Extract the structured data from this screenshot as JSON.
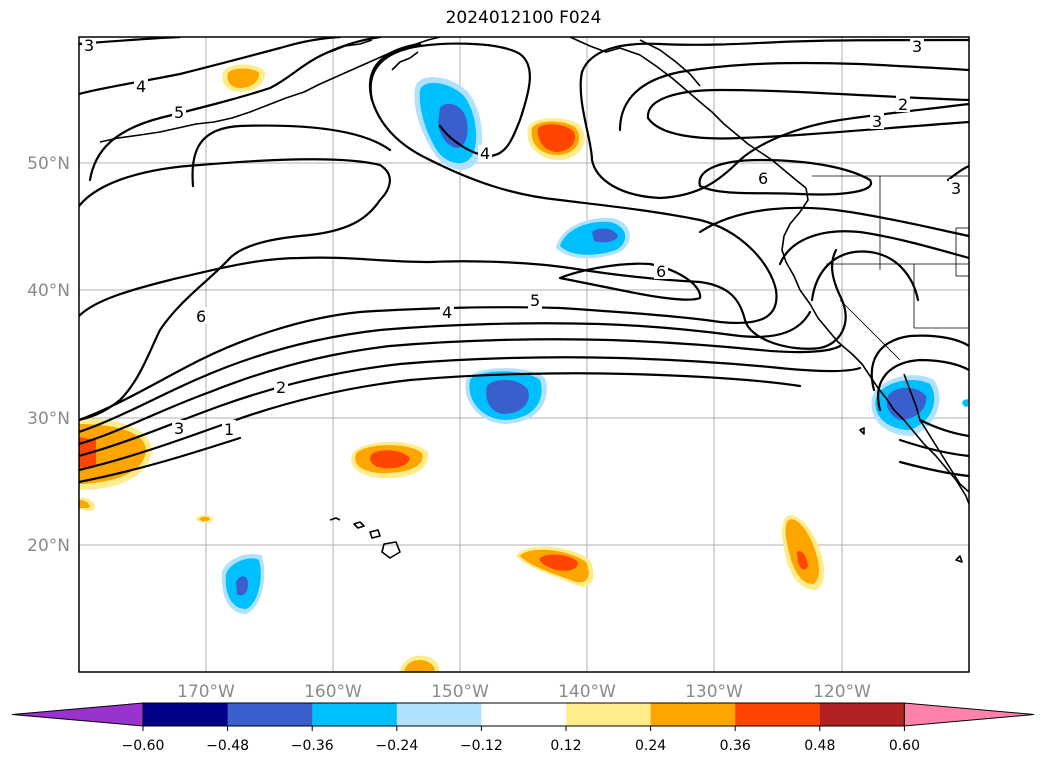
{
  "title": "2024012100 F024",
  "map": {
    "lat_labels": [
      "50°N",
      "40°N",
      "30°N",
      "20°N"
    ],
    "lon_labels": [
      "170°W",
      "160°W",
      "150°W",
      "140°W",
      "130°W",
      "120°W"
    ],
    "contour_labels": [
      "3",
      "4",
      "5",
      "4",
      "6",
      "5",
      "4",
      "6",
      "3",
      "2",
      "1",
      "6",
      "3",
      "2",
      "3",
      "3"
    ]
  },
  "colorbar": {
    "ticks": [
      "−0.60",
      "−0.48",
      "−0.36",
      "−0.24",
      "−0.12",
      "0.12",
      "0.24",
      "0.36",
      "0.48",
      "0.60"
    ],
    "colors": [
      "#9a32cd",
      "#00008b",
      "#3a5fcd",
      "#00bfff",
      "#b0e2ff",
      "#ffffff",
      "#ffec8b",
      "#ffa500",
      "#ff4500",
      "#b22222",
      "#ff82ab"
    ]
  }
}
